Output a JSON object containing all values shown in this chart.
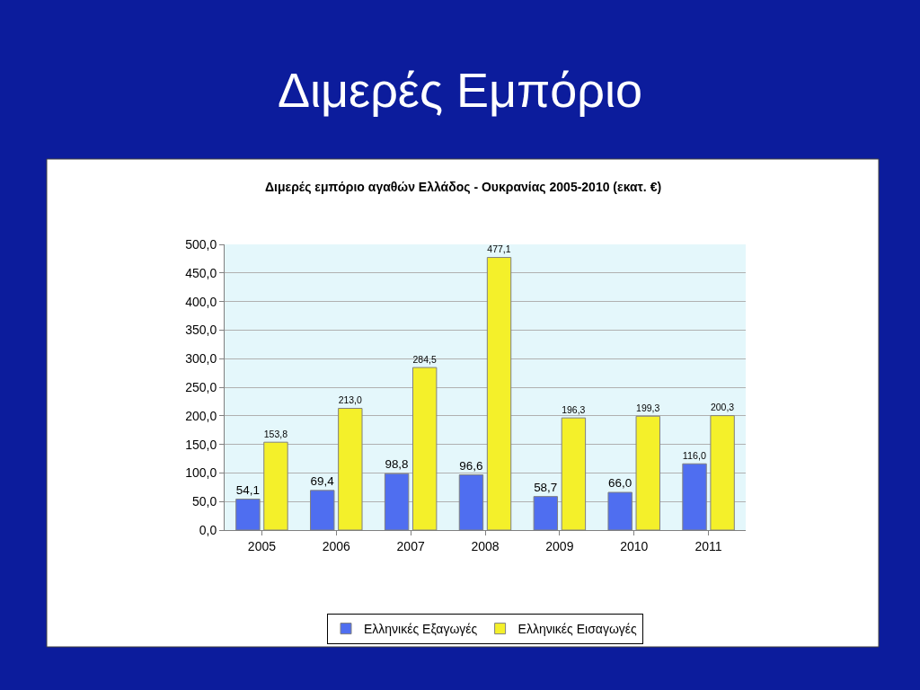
{
  "chart_data": {
    "type": "bar",
    "title": "Διμερές Εμπόριο",
    "subtitle": "Διμερές εμπόριο αγαθών Ελλάδος - Ουκρανίας 2005-2010 (εκατ. €)",
    "categories": [
      "2005",
      "2006",
      "2007",
      "2008",
      "2009",
      "2010",
      "2011"
    ],
    "series": [
      {
        "name": "Ελληνικές Εξαγωγές",
        "color": "#4f6ef0",
        "values": [
          54.1,
          69.4,
          98.8,
          96.6,
          58.7,
          66.0,
          116.0
        ],
        "value_labels": [
          "54,1",
          "69,4",
          "98,8",
          "96,6",
          "58,7",
          "66,0",
          "116,0"
        ]
      },
      {
        "name": "Ελληνικές Εισαγωγές",
        "color": "#f4f02a",
        "values": [
          153.8,
          213.0,
          284.5,
          477.1,
          196.3,
          199.3,
          200.3
        ],
        "value_labels": [
          "153,8",
          "213,0",
          "284,5",
          "477,1",
          "196,3",
          "199,3",
          "200,3"
        ]
      }
    ],
    "ylim": [
      0,
      500
    ],
    "yticks": [
      {
        "value": 0,
        "label": "0,0"
      },
      {
        "value": 50,
        "label": "50,0"
      },
      {
        "value": 100,
        "label": "100,0"
      },
      {
        "value": 150,
        "label": "150,0"
      },
      {
        "value": 200,
        "label": "200,0"
      },
      {
        "value": 250,
        "label": "250,0"
      },
      {
        "value": 300,
        "label": "300,0"
      },
      {
        "value": 350,
        "label": "350,0"
      },
      {
        "value": 400,
        "label": "400,0"
      },
      {
        "value": 450,
        "label": "450,0"
      },
      {
        "value": 500,
        "label": "500,0"
      }
    ],
    "grid": "y",
    "legend": "bottom"
  }
}
